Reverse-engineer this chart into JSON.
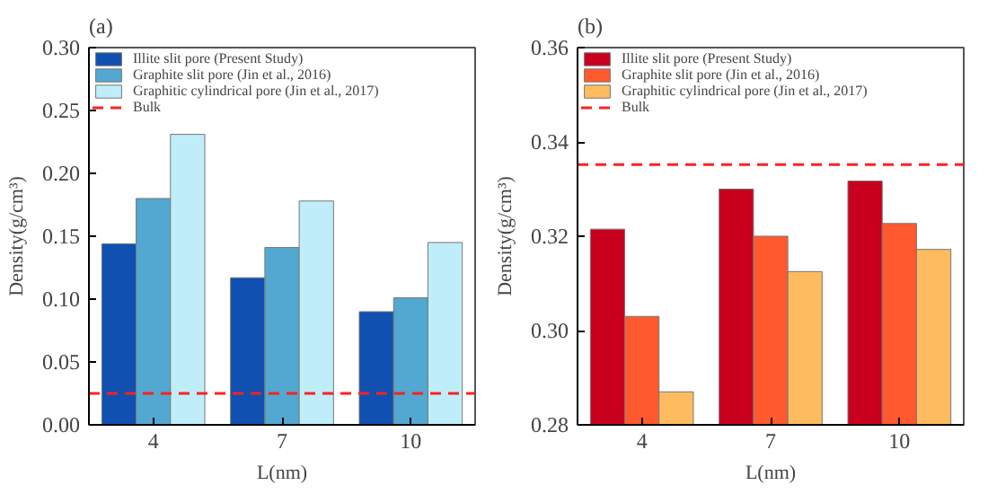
{
  "chart_data": [
    {
      "type": "bar",
      "title": "(a)",
      "xlabel": "L(nm)",
      "ylabel": "Density(g/cm³)",
      "categories": [
        "4",
        "7",
        "10"
      ],
      "series": [
        {
          "name": "Illite slit pore (Present Study)",
          "color": "#1050b0",
          "values": [
            0.144,
            0.117,
            0.09
          ]
        },
        {
          "name": "Graphite slit pore (Jin et al., 2016)",
          "color": "#52a8d0",
          "values": [
            0.18,
            0.141,
            0.101
          ]
        },
        {
          "name": "Graphitic cylindrical pore (Jin et al., 2017)",
          "color": "#bfeefa",
          "values": [
            0.231,
            0.178,
            0.145
          ]
        }
      ],
      "ref_lines": [
        {
          "axis": "y",
          "value": 0.025,
          "label": "Bulk",
          "color": "#ff2020",
          "line_style": "dashed"
        }
      ],
      "ylim": [
        0,
        0.3
      ],
      "yticks": [
        {
          "value": 0,
          "label": "0.00"
        },
        0.05,
        {
          "value": 0.1,
          "label": "0.10"
        },
        0.15,
        {
          "value": 0.2,
          "label": "0.20"
        },
        0.25,
        {
          "value": 0.3,
          "label": "0.30"
        }
      ],
      "grid": false,
      "legend": "top left"
    },
    {
      "type": "bar",
      "title": "(b)",
      "xlabel": "L(nm)",
      "ylabel": "Density(g/cm³)",
      "categories": [
        "4",
        "7",
        "10"
      ],
      "series": [
        {
          "name": "Illite slit pore (Present Study)",
          "color": "#c8001e",
          "values": [
            0.3215,
            0.33,
            0.3317
          ]
        },
        {
          "name": "Graphite slit pore (Jin et al., 2016)",
          "color": "#ff5a2e",
          "values": [
            0.303,
            0.32,
            0.3227
          ]
        },
        {
          "name": "Graphitic cylindrical pore (Jin et al., 2017)",
          "color": "#ffbb60",
          "values": [
            0.287,
            0.3125,
            0.3172
          ]
        }
      ],
      "ref_lines": [
        {
          "axis": "y",
          "value": 0.3352,
          "label": "Bulk",
          "color": "#ff2020",
          "line_style": "dashed"
        }
      ],
      "ylim": [
        0.28,
        0.36
      ],
      "yticks": [
        0.28,
        {
          "value": 0.3,
          "label": "0.30"
        },
        0.32,
        0.34,
        0.36
      ],
      "grid": false,
      "legend": "top left"
    }
  ]
}
